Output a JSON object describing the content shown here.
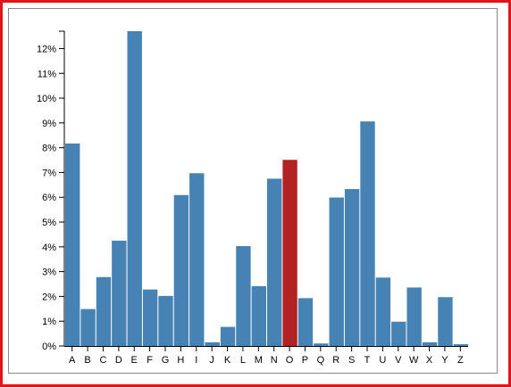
{
  "colors": {
    "bar": "#4682b4",
    "highlight": "#b22222",
    "frame_outer": "#e0141b",
    "frame_inner": "#8a8a8a",
    "axis": "#000000"
  },
  "chart_data": {
    "type": "bar",
    "title": "",
    "xlabel": "",
    "ylabel": "",
    "categories": [
      "A",
      "B",
      "C",
      "D",
      "E",
      "F",
      "G",
      "H",
      "I",
      "J",
      "K",
      "L",
      "M",
      "N",
      "O",
      "P",
      "Q",
      "R",
      "S",
      "T",
      "U",
      "V",
      "W",
      "X",
      "Y",
      "Z"
    ],
    "values": [
      8.17,
      1.49,
      2.78,
      4.25,
      12.7,
      2.28,
      2.02,
      6.09,
      6.97,
      0.15,
      0.77,
      4.03,
      2.41,
      6.75,
      7.51,
      1.93,
      0.1,
      5.99,
      6.33,
      9.06,
      2.76,
      0.98,
      2.36,
      0.15,
      1.97,
      0.07
    ],
    "highlighted_category": "O",
    "ylim": [
      0,
      12.7
    ],
    "y_ticks": [
      0,
      1,
      2,
      3,
      4,
      5,
      6,
      7,
      8,
      9,
      10,
      11,
      12
    ],
    "y_tick_labels": [
      "0%",
      "1%",
      "2%",
      "3%",
      "4%",
      "5%",
      "6%",
      "7%",
      "8%",
      "9%",
      "10%",
      "11%",
      "12%"
    ],
    "grid": false,
    "legend": "none"
  }
}
